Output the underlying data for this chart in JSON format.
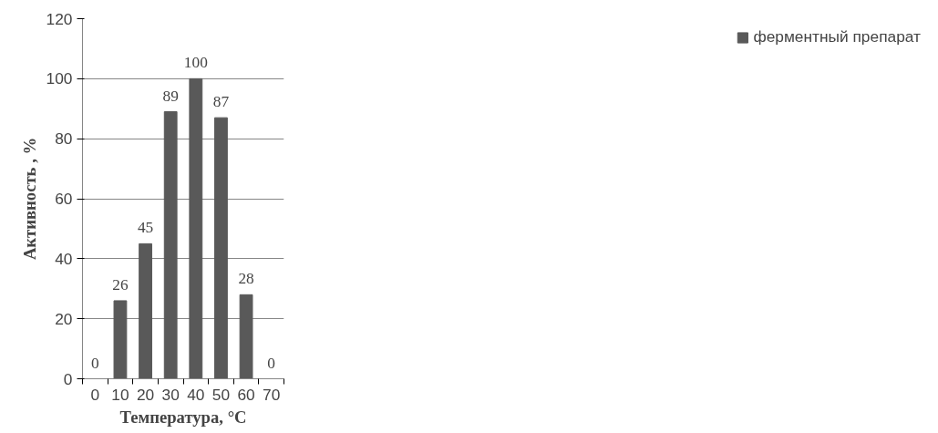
{
  "chart_data": {
    "type": "bar",
    "categories": [
      "0",
      "10",
      "20",
      "30",
      "40",
      "50",
      "60",
      "70"
    ],
    "series": [
      {
        "name": "ферментный препарат",
        "color": "#595959",
        "values": [
          0,
          26,
          45,
          89,
          100,
          87,
          28,
          0
        ]
      }
    ],
    "xlabel": "Температура, °C",
    "ylabel": "Активность , %",
    "ylim": [
      0,
      120
    ],
    "yticks": [
      0,
      20,
      40,
      60,
      80,
      100,
      120
    ],
    "grid": "y",
    "legend": "right",
    "data_labels": true
  }
}
